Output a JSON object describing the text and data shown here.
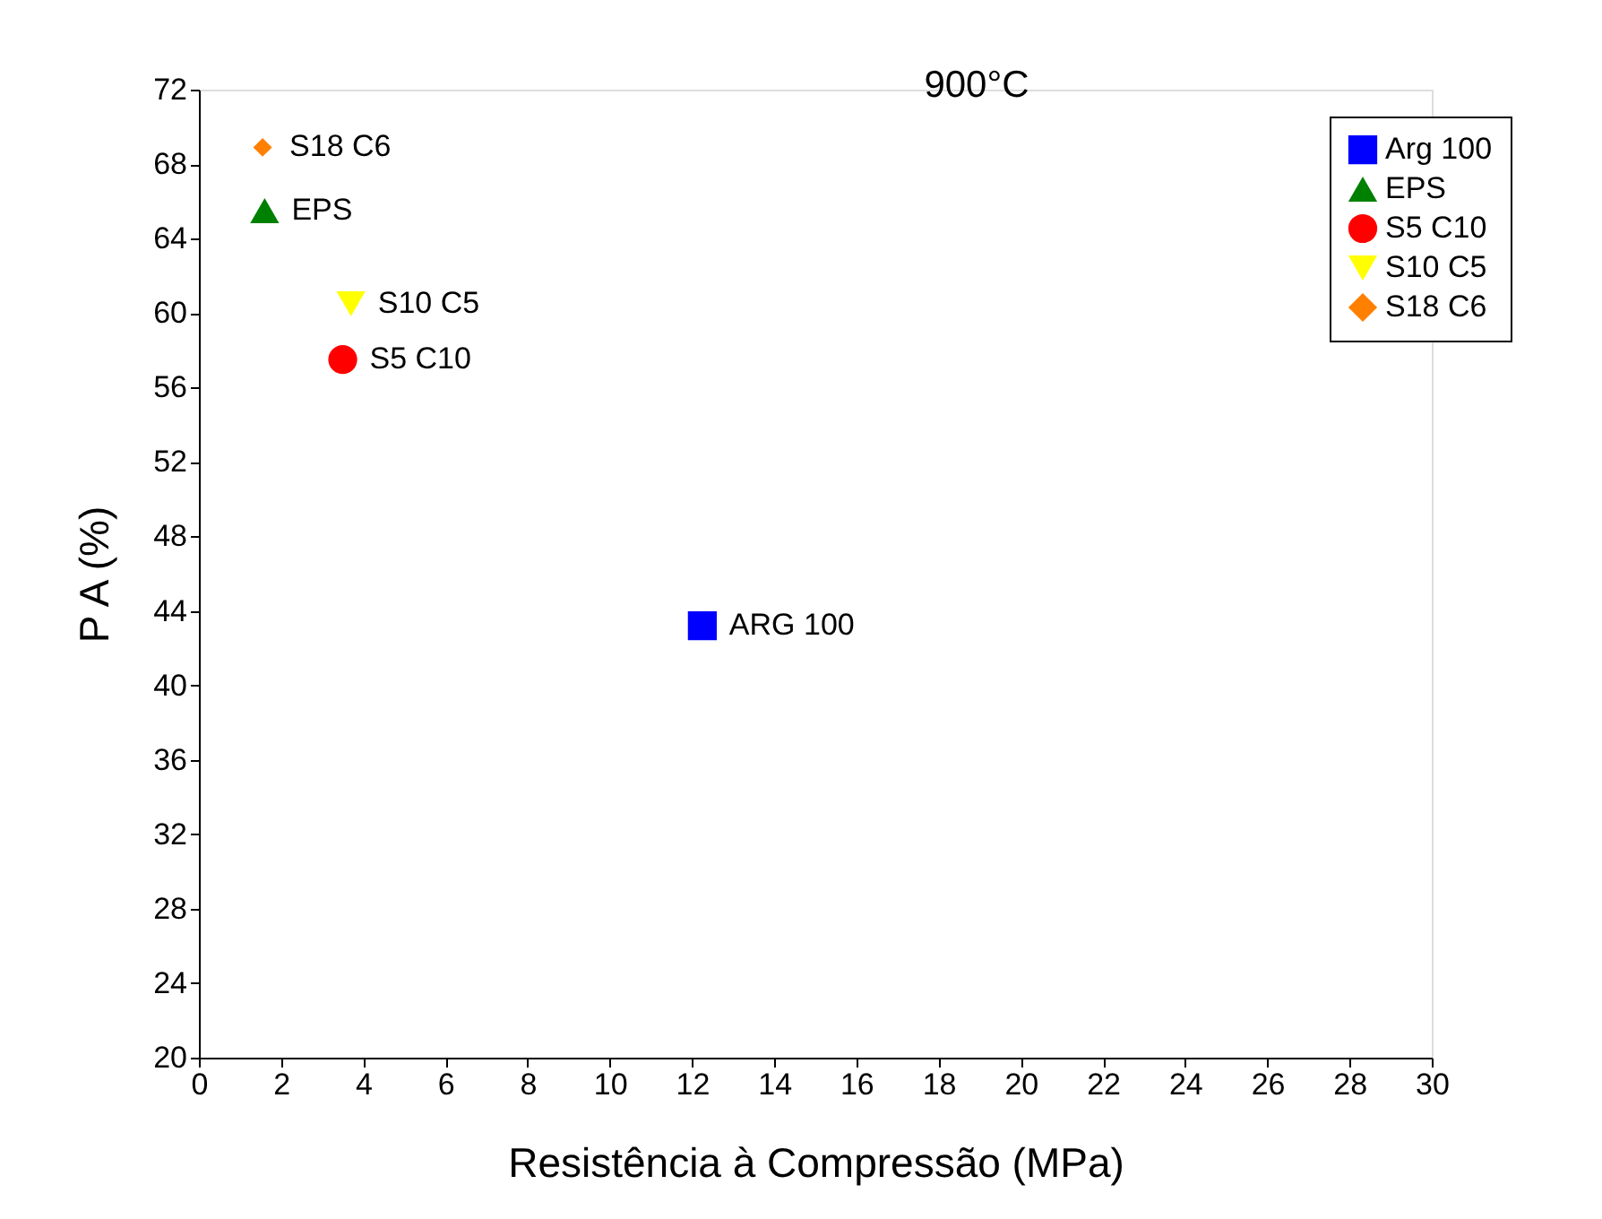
{
  "chart_data": {
    "type": "scatter",
    "xlabel": "Resistência à Compressão (MPa)",
    "ylabel": "P A (%)",
    "xlim": [
      0,
      30
    ],
    "xticks": [
      0,
      2,
      4,
      6,
      8,
      10,
      12,
      14,
      16,
      18,
      20,
      22,
      24,
      26,
      28,
      30
    ],
    "ylim": [
      20,
      72
    ],
    "yticks": [
      20,
      24,
      28,
      32,
      36,
      40,
      44,
      48,
      52,
      56,
      60,
      64,
      68,
      72
    ],
    "grid": false,
    "legend": "top right",
    "series": [
      {
        "name": "Arg 100",
        "color": "#0000ff",
        "marker": "square",
        "x": [
          12.25
        ],
        "values": [
          43.2
        ]
      },
      {
        "name": "EPS",
        "color": "#008000",
        "marker": "triangle",
        "x": [
          1.6
        ],
        "values": [
          65.5
        ]
      },
      {
        "name": "S5 C10",
        "color": "#ff0000",
        "marker": "circle",
        "x": [
          3.5
        ],
        "values": [
          57.5
        ]
      },
      {
        "name": "S10 C5",
        "color": "#ffff00",
        "marker": "triangle-down",
        "x": [
          3.7
        ],
        "values": [
          60.5
        ]
      },
      {
        "name": "S18 C6",
        "color": "#ff8000",
        "marker": "diamond",
        "x": [
          1.55
        ],
        "values": [
          68.9
        ]
      }
    ],
    "annotations": [
      "900°C",
      {
        "text": "ARG 100",
        "x": 12.25,
        "y": 43.2
      },
      {
        "text": "EPS",
        "x": 1.6,
        "y": 65.5
      },
      {
        "text": "S5 C10",
        "x": 3.5,
        "y": 57.5
      },
      {
        "text": "S10 C5",
        "x": 3.7,
        "y": 60.5
      },
      {
        "text": "S18 C6",
        "x": 1.55,
        "y": 68.9
      }
    ]
  }
}
